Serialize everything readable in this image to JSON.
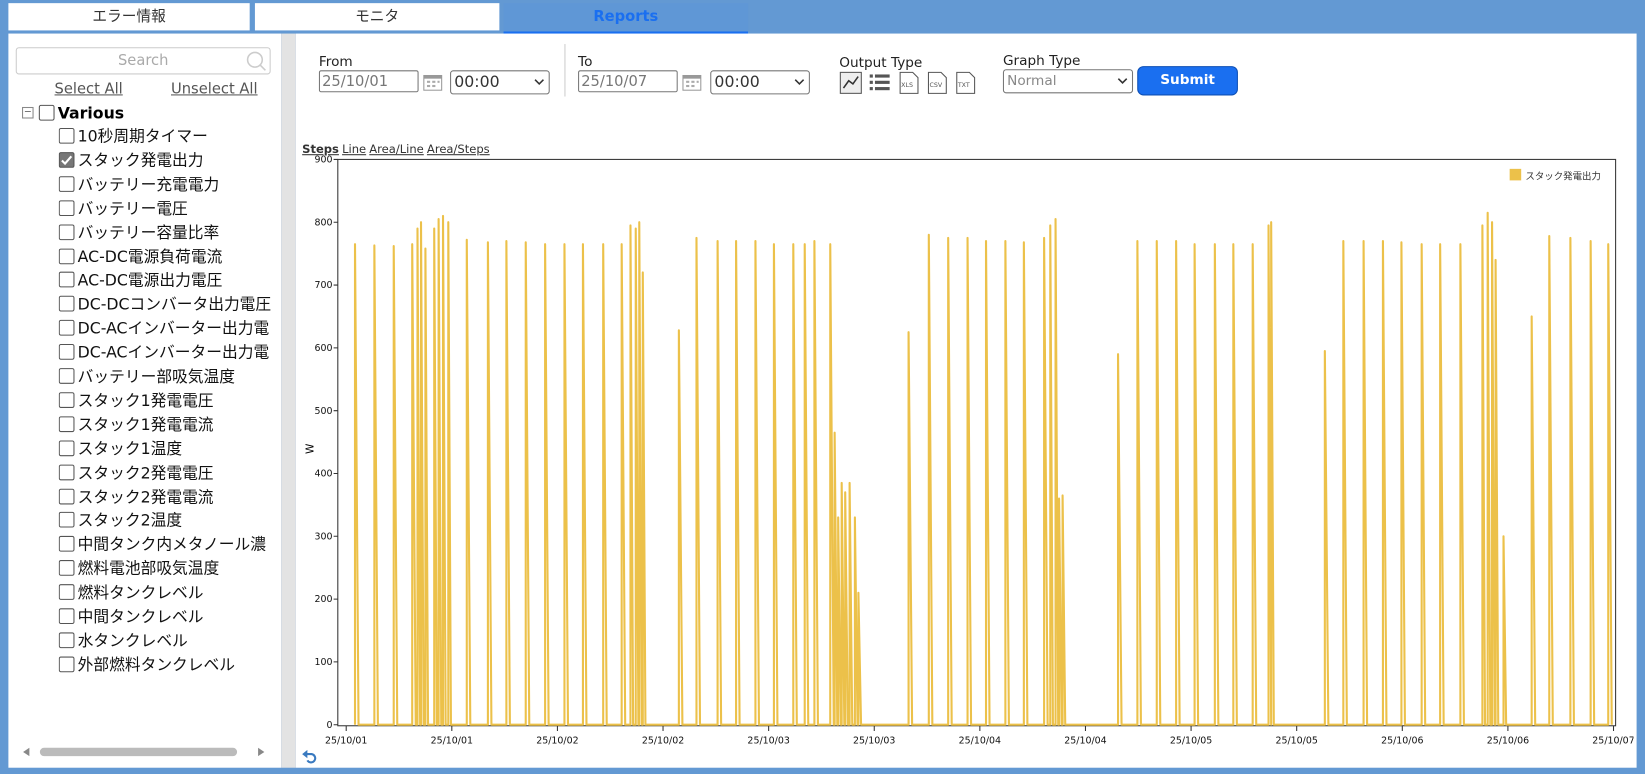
{
  "tabs": [
    "エラー情報",
    "モニタ",
    "Reports"
  ],
  "sidebar": {
    "search_placeholder": "Search",
    "select_all": "Select All",
    "unselect_all": "Unselect All",
    "group": "Various",
    "items": [
      {
        "label": "10秒周期タイマー",
        "checked": false
      },
      {
        "label": "スタック発電出力",
        "checked": true
      },
      {
        "label": "バッテリー充電電力",
        "checked": false
      },
      {
        "label": "バッテリー電圧",
        "checked": false
      },
      {
        "label": "バッテリー容量比率",
        "checked": false
      },
      {
        "label": "AC-DC電源負荷電流",
        "checked": false
      },
      {
        "label": "AC-DC電源出力電圧",
        "checked": false
      },
      {
        "label": "DC-DCコンバータ出力電圧",
        "checked": false
      },
      {
        "label": "DC-ACインバーター出力電",
        "checked": false
      },
      {
        "label": "DC-ACインバーター出力電",
        "checked": false
      },
      {
        "label": "バッテリー部吸気温度",
        "checked": false
      },
      {
        "label": "スタック1発電電圧",
        "checked": false
      },
      {
        "label": "スタック1発電電流",
        "checked": false
      },
      {
        "label": "スタック1温度",
        "checked": false
      },
      {
        "label": "スタック2発電電圧",
        "checked": false
      },
      {
        "label": "スタック2発電電流",
        "checked": false
      },
      {
        "label": "スタック2温度",
        "checked": false
      },
      {
        "label": "中間タンク内メタノール濃",
        "checked": false
      },
      {
        "label": "燃料電池部吸気温度",
        "checked": false
      },
      {
        "label": "燃料タンクレベル",
        "checked": false
      },
      {
        "label": "中間タンクレベル",
        "checked": false
      },
      {
        "label": "水タンクレベル",
        "checked": false
      },
      {
        "label": "外部燃料タンクレベル",
        "checked": false
      }
    ]
  },
  "form": {
    "from_label": "From",
    "from_date": "25/10/01",
    "from_time": "00:00",
    "to_label": "To",
    "to_date": "25/10/07",
    "to_time": "00:00",
    "output_type_label": "Output Type",
    "graph_type_label": "Graph Type",
    "graph_type": "Normal",
    "submit": "Submit"
  },
  "chart_modes": [
    "Steps",
    "Line",
    "Area/Line",
    "Area/Steps"
  ],
  "chart_data": {
    "type": "line",
    "y_label": "W",
    "ylim": [
      0,
      900
    ],
    "yticks": [
      0,
      100,
      200,
      300,
      400,
      500,
      600,
      700,
      800,
      900
    ],
    "xlim": [
      0,
      144
    ],
    "xticks": [
      {
        "value": 0,
        "label": "25/10/01"
      },
      {
        "value": 12,
        "label": "25/10/01"
      },
      {
        "value": 24,
        "label": "25/10/02"
      },
      {
        "value": 36,
        "label": "25/10/02"
      },
      {
        "value": 48,
        "label": "25/10/03"
      },
      {
        "value": 60,
        "label": "25/10/03"
      },
      {
        "value": 72,
        "label": "25/10/04"
      },
      {
        "value": 84,
        "label": "25/10/04"
      },
      {
        "value": 96,
        "label": "25/10/05"
      },
      {
        "value": 108,
        "label": "25/10/05"
      },
      {
        "value": 120,
        "label": "25/10/06"
      },
      {
        "value": 132,
        "label": "25/10/06"
      },
      {
        "value": 144,
        "label": "25/10/07"
      }
    ],
    "legend": "top-right",
    "series": [
      {
        "name": "スタック発電出力",
        "color": "#ecc14a",
        "x": [
          1.0,
          1.0,
          1.4,
          3.2,
          3.2,
          3.6,
          5.4,
          5.4,
          5.8,
          7.5,
          7.5,
          7.9,
          8.1,
          8.1,
          8.4,
          8.5,
          8.5,
          8.8,
          9.0,
          9.0,
          9.3,
          10.0,
          10.0,
          10.3,
          10.5,
          10.5,
          10.8,
          11.0,
          11.0,
          11.3,
          11.6,
          11.6,
          11.9,
          13.7,
          13.7,
          14.1,
          16.1,
          16.1,
          16.5,
          18.2,
          18.2,
          18.6,
          20.4,
          20.4,
          20.8,
          22.6,
          22.6,
          23.0,
          24.8,
          24.8,
          25.2,
          26.9,
          26.9,
          27.3,
          29.2,
          29.2,
          29.6,
          31.3,
          31.3,
          31.7,
          32.3,
          32.3,
          32.6,
          32.9,
          32.9,
          33.2,
          33.3,
          33.3,
          33.6,
          33.7,
          33.7,
          34.0,
          37.8,
          37.8,
          38.2,
          39.8,
          39.8,
          40.2,
          42.2,
          42.2,
          42.6,
          44.3,
          44.3,
          44.7,
          46.5,
          46.5,
          46.9,
          48.6,
          48.6,
          49.0,
          50.8,
          50.8,
          51.2,
          52.1,
          52.1,
          52.5,
          53.2,
          53.2,
          53.6,
          55.0,
          55.0,
          55.4,
          55.5,
          55.5,
          55.8,
          55.9,
          55.9,
          56.2,
          56.3,
          56.3,
          56.6,
          56.7,
          56.7,
          57.0,
          57.2,
          57.2,
          57.5,
          57.8,
          57.8,
          58.1,
          58.2,
          58.2,
          58.5,
          63.9,
          63.9,
          64.3,
          66.2,
          66.2,
          66.6,
          68.4,
          68.4,
          68.8,
          70.6,
          70.6,
          71.0,
          72.7,
          72.7,
          73.1,
          74.9,
          74.9,
          75.3,
          77.0,
          77.0,
          77.4,
          79.3,
          79.3,
          79.7,
          80.0,
          80.0,
          80.3,
          80.6,
          80.6,
          80.9,
          81.0,
          81.0,
          81.3,
          81.4,
          81.4,
          81.7,
          87.7,
          87.7,
          88.1,
          89.9,
          89.9,
          90.3,
          92.1,
          92.1,
          92.5,
          94.3,
          94.3,
          94.7,
          96.4,
          96.4,
          96.8,
          98.7,
          98.7,
          99.1,
          100.8,
          100.8,
          101.2,
          103.0,
          103.0,
          103.4,
          104.8,
          104.8,
          105.1,
          105.1,
          105.1,
          105.4,
          111.2,
          111.2,
          111.6,
          113.3,
          113.3,
          113.7,
          115.6,
          115.6,
          116.0,
          117.8,
          117.8,
          118.2,
          119.9,
          119.9,
          120.3,
          122.2,
          122.2,
          122.6,
          124.3,
          124.3,
          124.7,
          126.6,
          126.6,
          127.0,
          129.1,
          129.1,
          129.4,
          129.7,
          129.7,
          130.0,
          130.2,
          130.2,
          130.5,
          130.6,
          130.6,
          130.9,
          131.5,
          131.5,
          131.8,
          134.7,
          134.7,
          135.1,
          136.7,
          136.7,
          137.1,
          139.1,
          139.1,
          139.5,
          141.4,
          141.4,
          141.8,
          143.4,
          143.4,
          143.8
        ],
        "values": [
          0,
          765,
          0,
          0,
          763,
          0,
          0,
          762,
          0,
          0,
          765,
          0,
          0,
          790,
          0,
          0,
          800,
          0,
          0,
          758,
          0,
          0,
          790,
          0,
          0,
          805,
          0,
          0,
          810,
          0,
          0,
          800,
          0,
          0,
          772,
          0,
          0,
          768,
          0,
          0,
          770,
          0,
          0,
          768,
          0,
          0,
          765,
          0,
          0,
          765,
          0,
          0,
          765,
          0,
          0,
          765,
          0,
          0,
          765,
          0,
          0,
          795,
          0,
          0,
          790,
          0,
          0,
          800,
          0,
          0,
          720,
          0,
          0,
          628,
          0,
          0,
          775,
          0,
          0,
          770,
          0,
          0,
          770,
          0,
          0,
          770,
          0,
          0,
          765,
          0,
          0,
          765,
          0,
          0,
          765,
          0,
          0,
          770,
          0,
          0,
          765,
          0,
          0,
          465,
          0,
          0,
          330,
          0,
          0,
          385,
          0,
          0,
          370,
          0,
          0,
          385,
          0,
          0,
          330,
          0,
          0,
          210,
          0,
          0,
          625,
          0,
          0,
          780,
          0,
          0,
          775,
          0,
          0,
          775,
          0,
          0,
          770,
          0,
          0,
          770,
          0,
          0,
          768,
          0,
          0,
          775,
          0,
          0,
          795,
          0,
          0,
          805,
          0,
          0,
          360,
          0,
          0,
          365,
          0,
          0,
          590,
          0,
          0,
          770,
          0,
          0,
          770,
          0,
          0,
          770,
          0,
          0,
          765,
          0,
          0,
          765,
          0,
          0,
          765,
          0,
          0,
          765,
          0,
          0,
          795,
          0,
          0,
          800,
          0,
          0,
          595,
          0,
          0,
          770,
          0,
          0,
          770,
          0,
          0,
          770,
          0,
          0,
          768,
          0,
          0,
          765,
          0,
          0,
          765,
          0,
          0,
          765,
          0,
          0,
          795,
          0,
          0,
          815,
          0,
          0,
          800,
          0,
          0,
          740,
          0,
          0,
          300,
          0,
          0,
          650,
          0,
          0,
          778,
          0,
          0,
          775,
          0,
          0,
          770,
          0,
          0,
          765,
          0
        ]
      }
    ]
  }
}
